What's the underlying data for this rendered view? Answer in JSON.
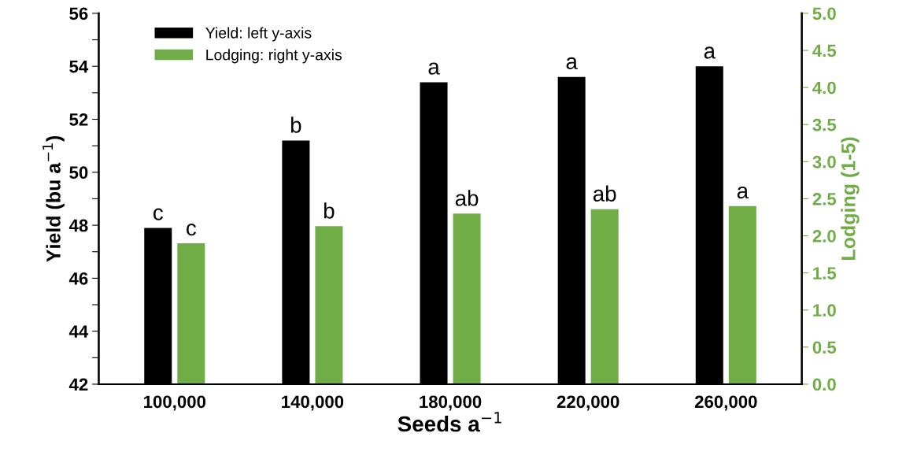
{
  "chart_data": {
    "type": "bar",
    "xlabel": "Seeds a$^{−1}$",
    "ylabel": "Yield (bu a$^{−1}$)",
    "y2label": "Lodging (1-5)",
    "categories": [
      "100,000",
      "140,000",
      "180,000",
      "220,000",
      "260,000"
    ],
    "series": [
      {
        "name": "Yield: left y-axis",
        "color": "#000000",
        "values": [
          47.9,
          51.2,
          53.4,
          53.6,
          54.0
        ],
        "value_labels": [
          "c",
          "b",
          "a",
          "a",
          "a"
        ]
      },
      {
        "name": "Lodging: right y-axis",
        "color": "#70ad47",
        "axis": "y2",
        "values": [
          1.9,
          2.13,
          2.3,
          2.36,
          2.4
        ],
        "value_labels": [
          "c",
          "b",
          "ab",
          "ab",
          "a"
        ]
      }
    ],
    "ylim": [
      42,
      56
    ],
    "yticks": [
      42,
      {
        "value": 43,
        "label": null
      },
      44,
      {
        "value": 45,
        "label": null
      },
      46,
      {
        "value": 47,
        "label": null
      },
      48,
      {
        "value": 49,
        "label": null
      },
      50,
      {
        "value": 51,
        "label": null
      },
      52,
      {
        "value": 53,
        "label": null
      },
      54,
      {
        "value": 55,
        "label": null
      },
      56
    ],
    "y2lim": [
      0,
      5
    ],
    "y2ticks": [
      {
        "value": 0,
        "label": "0.0"
      },
      0.5,
      {
        "value": 1,
        "label": "1.0"
      },
      1.5,
      {
        "value": 2,
        "label": "2.0"
      },
      2.5,
      {
        "value": 3,
        "label": "3.0"
      },
      3.5,
      {
        "value": 4,
        "label": "4.0"
      },
      4.5,
      {
        "value": 5,
        "label": "5.0"
      }
    ],
    "grid": false,
    "legend": "top left"
  }
}
